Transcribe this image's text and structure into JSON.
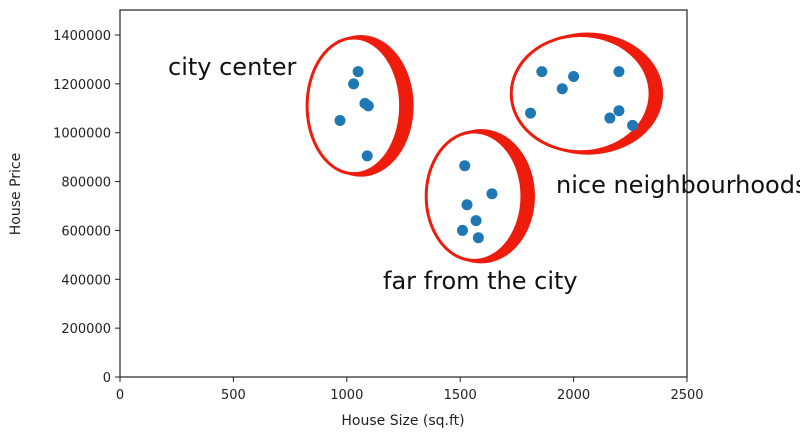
{
  "chart_data": {
    "type": "scatter",
    "xlabel": "House Size (sq.ft)",
    "ylabel": "House Price",
    "xlim": [
      0,
      2500
    ],
    "ylim": [
      0,
      1500000
    ],
    "xticks": [
      0,
      500,
      1000,
      1500,
      2000,
      2500
    ],
    "yticks": [
      0,
      200000,
      400000,
      600000,
      800000,
      1000000,
      1200000,
      1400000
    ],
    "point_color": "#1f77b4",
    "points": [
      {
        "x": 1050,
        "y": 1250000
      },
      {
        "x": 1030,
        "y": 1200000
      },
      {
        "x": 1080,
        "y": 1120000
      },
      {
        "x": 1095,
        "y": 1110000
      },
      {
        "x": 970,
        "y": 1050000
      },
      {
        "x": 1090,
        "y": 905000
      },
      {
        "x": 1520,
        "y": 865000
      },
      {
        "x": 1640,
        "y": 750000
      },
      {
        "x": 1530,
        "y": 705000
      },
      {
        "x": 1570,
        "y": 640000
      },
      {
        "x": 1510,
        "y": 600000
      },
      {
        "x": 1580,
        "y": 570000
      },
      {
        "x": 1860,
        "y": 1250000
      },
      {
        "x": 2000,
        "y": 1230000
      },
      {
        "x": 2200,
        "y": 1250000
      },
      {
        "x": 1950,
        "y": 1180000
      },
      {
        "x": 1810,
        "y": 1080000
      },
      {
        "x": 2200,
        "y": 1090000
      },
      {
        "x": 2160,
        "y": 1060000
      },
      {
        "x": 2260,
        "y": 1030000
      }
    ],
    "annotations": [
      {
        "text": "city center",
        "cluster": {
          "cx": 1040,
          "cy": 1110000,
          "rx": 215,
          "ry": 290000
        }
      },
      {
        "text": "far from the city",
        "cluster": {
          "cx": 1570,
          "cy": 740000,
          "rx": 220,
          "ry": 275000
        }
      },
      {
        "text": "nice neighbourhoods",
        "cluster": {
          "cx": 2040,
          "cy": 1160000,
          "rx": 315,
          "ry": 250000
        }
      }
    ],
    "annotation_color": "#ee1c0c"
  }
}
